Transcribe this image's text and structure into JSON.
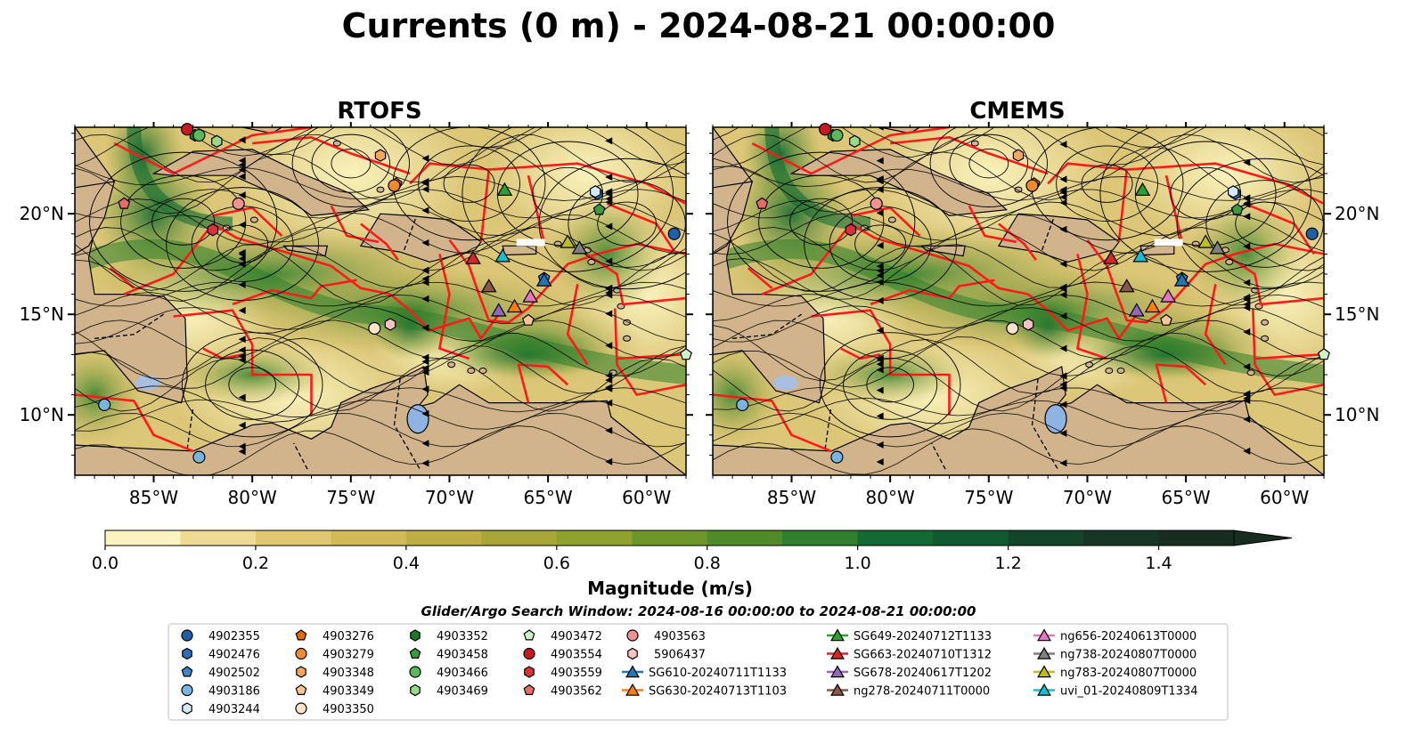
{
  "title": "Currents (0 m) - 2024-08-21 00:00:00",
  "panels": [
    {
      "id": "rtofs",
      "title": "RTOFS"
    },
    {
      "id": "cmems",
      "title": "CMEMS"
    }
  ],
  "axes": {
    "lon_ticks": [
      "85°W",
      "80°W",
      "75°W",
      "70°W",
      "65°W",
      "60°W"
    ],
    "lat_ticks": [
      "20°N",
      "15°N",
      "10°N"
    ]
  },
  "colorbar": {
    "label": "Magnitude (m/s)",
    "ticks": [
      "0.0",
      "0.2",
      "0.4",
      "0.6",
      "0.8",
      "1.0",
      "1.2",
      "1.4"
    ],
    "min": 0.0,
    "max": 1.5,
    "extend": "max",
    "colors": [
      "#fbf4c0",
      "#eedc95",
      "#e2c873",
      "#d2b95a",
      "#bfae48",
      "#a8a53b",
      "#8fa12f",
      "#6f962a",
      "#4f8b28",
      "#2f7f2c",
      "#146a32",
      "#0f5a30",
      "#13452b",
      "#173626",
      "#182c1f"
    ]
  },
  "search_window": "Glider/Argo Search Window: 2024-08-16 00:00:00 to 2024-08-21 00:00:00",
  "legend": [
    {
      "label": "4902355",
      "marker": "circle",
      "color": "#1f5fa8"
    },
    {
      "label": "4902476",
      "marker": "hexagon",
      "color": "#2e6fb5"
    },
    {
      "label": "4902502",
      "marker": "pentagon",
      "color": "#3a85cc"
    },
    {
      "label": "4903186",
      "marker": "circle",
      "color": "#7ab4e0"
    },
    {
      "label": "4903244",
      "marker": "hexagon",
      "color": "#d6e9f8"
    },
    {
      "label": "4903276",
      "marker": "pentagon",
      "color": "#e06c0c"
    },
    {
      "label": "4903279",
      "marker": "circle",
      "color": "#f28a2e"
    },
    {
      "label": "4903348",
      "marker": "hexagon",
      "color": "#f8a65e"
    },
    {
      "label": "4903349",
      "marker": "pentagon",
      "color": "#fbc594"
    },
    {
      "label": "4903350",
      "marker": "circle",
      "color": "#fde3c8"
    },
    {
      "label": "4903352",
      "marker": "hexagon",
      "color": "#1e7a2a"
    },
    {
      "label": "4903458",
      "marker": "pentagon",
      "color": "#3a9a3e"
    },
    {
      "label": "4903466",
      "marker": "circle",
      "color": "#5cb85c"
    },
    {
      "label": "4903469",
      "marker": "hexagon",
      "color": "#9ad98b"
    },
    {
      "label": "4903472",
      "marker": "pentagon",
      "color": "#cdf2c4"
    },
    {
      "label": "4903554",
      "marker": "circle",
      "color": "#c9191e"
    },
    {
      "label": "4903559",
      "marker": "hexagon",
      "color": "#d9323a"
    },
    {
      "label": "4903562",
      "marker": "pentagon",
      "color": "#ea6a6a"
    },
    {
      "label": "4903563",
      "marker": "circle",
      "color": "#ef9390"
    },
    {
      "label": "5906437",
      "marker": "hexagon",
      "color": "#f8c2c2"
    },
    {
      "label": "SG610-20240711T1133",
      "marker": "triangle-line",
      "color": "#1f77b4"
    },
    {
      "label": "SG630-20240713T1103",
      "marker": "triangle-line",
      "color": "#ff7f0e"
    },
    {
      "label": "SG649-20240712T1133",
      "marker": "triangle-line",
      "color": "#2ca02c"
    },
    {
      "label": "SG663-20240710T1312",
      "marker": "triangle-line",
      "color": "#d62728"
    },
    {
      "label": "SG678-20240617T1202",
      "marker": "triangle-line",
      "color": "#9467bd"
    },
    {
      "label": "ng278-20240711T0000",
      "marker": "triangle-line",
      "color": "#8c564b"
    },
    {
      "label": "ng656-20240613T0000",
      "marker": "triangle-line",
      "color": "#e377c2"
    },
    {
      "label": "ng738-20240807T0000",
      "marker": "triangle-line",
      "color": "#7f7f7f"
    },
    {
      "label": "ng783-20240807T0000",
      "marker": "triangle-line",
      "color": "#bcbd22"
    },
    {
      "label": "uvi_01-20240809T1334",
      "marker": "triangle-line",
      "color": "#17becf"
    }
  ],
  "floats": [
    {
      "id": "4902355",
      "lon": -58.6,
      "lat": 19.0
    },
    {
      "id": "4902476",
      "lon": -62.5,
      "lat": 21.0
    },
    {
      "id": "4902502",
      "lon": -65.2,
      "lat": 16.8
    },
    {
      "id": "4903186",
      "lon": -87.5,
      "lat": 10.5
    },
    {
      "id": "4903244",
      "lon": -62.6,
      "lat": 21.1
    },
    {
      "id": "4903276",
      "lon": -72.7,
      "lat": 21.5
    },
    {
      "id": "4903279",
      "lon": -72.8,
      "lat": 21.4
    },
    {
      "id": "4903348",
      "lon": -73.5,
      "lat": 22.9
    },
    {
      "id": "4903349",
      "lon": -66.0,
      "lat": 14.7
    },
    {
      "id": "4903350",
      "lon": -73.8,
      "lat": 14.3
    },
    {
      "id": "4903352",
      "lon": -82.9,
      "lat": 23.9
    },
    {
      "id": "4903458",
      "lon": -62.4,
      "lat": 20.2
    },
    {
      "id": "4903466",
      "lon": -82.7,
      "lat": 23.9
    },
    {
      "id": "4903469",
      "lon": -81.8,
      "lat": 23.6
    },
    {
      "id": "4903472",
      "lon": -58.0,
      "lat": 13.0
    },
    {
      "id": "4903554",
      "lon": -83.3,
      "lat": 24.2
    },
    {
      "id": "4903559",
      "lon": -82.0,
      "lat": 19.2
    },
    {
      "id": "4903562",
      "lon": -86.5,
      "lat": 20.5
    },
    {
      "id": "4903563",
      "lon": -80.7,
      "lat": 20.5
    },
    {
      "id": "5906437",
      "lon": -73.0,
      "lat": 14.5
    },
    {
      "id": "4903186-b",
      "lon": -82.7,
      "lat": 7.9
    }
  ],
  "gliders": [
    {
      "id": "SG610-20240711T1133",
      "lon": -65.2,
      "lat": 16.7
    },
    {
      "id": "SG630-20240713T1103",
      "lon": -66.7,
      "lat": 15.4
    },
    {
      "id": "SG649-20240712T1133",
      "lon": -67.2,
      "lat": 21.2
    },
    {
      "id": "SG663-20240710T1312",
      "lon": -68.8,
      "lat": 17.8
    },
    {
      "id": "SG678-20240617T1202",
      "lon": -67.5,
      "lat": 15.2
    },
    {
      "id": "ng278-20240711T0000",
      "lon": -68.0,
      "lat": 16.4
    },
    {
      "id": "ng656-20240613T0000",
      "lon": -65.9,
      "lat": 15.9
    },
    {
      "id": "ng738-20240807T0000",
      "lon": -63.4,
      "lat": 18.3
    },
    {
      "id": "ng783-20240807T0000",
      "lon": -64.0,
      "lat": 18.6
    },
    {
      "id": "uvi_01-20240809T1334",
      "lon": -67.3,
      "lat": 17.9
    }
  ]
}
